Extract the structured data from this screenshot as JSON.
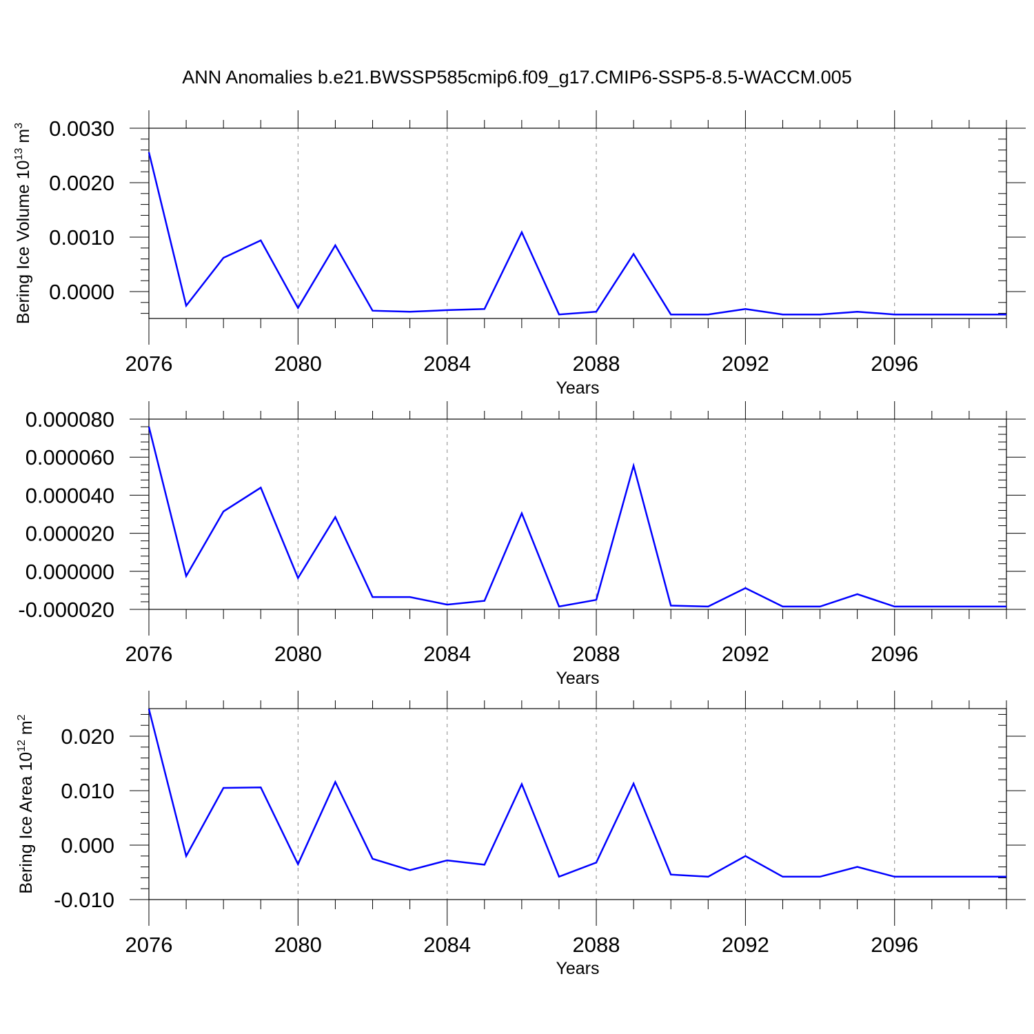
{
  "title": "ANN Anomalies b.e21.BWSSP585cmip6.f09_g17.CMIP6-SSP5-8.5-WACCM.005",
  "colors": {
    "line": "#0000ff",
    "axis": "#000000",
    "grid": "#888888"
  },
  "chart_data": [
    {
      "type": "line",
      "xlabel": "Years",
      "ylabel": "Bering Ice Volume 10",
      "ylabel_exp": "13",
      "ylabel_unit": " m",
      "ylabel_unit_exp": "3",
      "xlim": [
        2076,
        2099
      ],
      "ylim": [
        -0.0005,
        0.003
      ],
      "grid": "x dashed",
      "xticks": [
        2076,
        2080,
        2084,
        2088,
        2092,
        2096
      ],
      "xtick_labels": [
        "2076",
        "2080",
        "2084",
        "2088",
        "2092",
        "2096"
      ],
      "yticks": [
        0.003,
        0.002,
        0.001,
        0.0
      ],
      "ytick_labels": [
        "0.0030",
        "0.0020",
        "0.0010",
        "0.0000"
      ],
      "x": [
        2076,
        2077,
        2078,
        2079,
        2080,
        2081,
        2082,
        2083,
        2084,
        2085,
        2086,
        2087,
        2088,
        2089,
        2090,
        2091,
        2092,
        2093,
        2094,
        2095,
        2096,
        2097,
        2098,
        2099
      ],
      "y": [
        0.00256,
        -0.00026,
        0.00062,
        0.00094,
        -0.0003,
        0.00085,
        -0.00035,
        -0.00037,
        -0.00034,
        -0.00032,
        0.00109,
        -0.00042,
        -0.00037,
        0.00069,
        -0.00042,
        -0.00042,
        -0.00032,
        -0.00042,
        -0.00042,
        -0.00037,
        -0.00042,
        -0.00042,
        -0.00042,
        -0.00042
      ]
    },
    {
      "type": "line",
      "xlabel": "Years",
      "ylabel": "",
      "xlim": [
        2076,
        2099
      ],
      "ylim": [
        -2e-05,
        8e-05
      ],
      "grid": "x dashed",
      "xticks": [
        2076,
        2080,
        2084,
        2088,
        2092,
        2096
      ],
      "xtick_labels": [
        "2076",
        "2080",
        "2084",
        "2088",
        "2092",
        "2096"
      ],
      "yticks": [
        8e-05,
        6e-05,
        4e-05,
        2e-05,
        0.0,
        -2e-05
      ],
      "ytick_labels": [
        "0.000080",
        "0.000060",
        "0.000040",
        "0.000020",
        "0.000000",
        "-0.000020"
      ],
      "x": [
        2076,
        2077,
        2078,
        2079,
        2080,
        2081,
        2082,
        2083,
        2084,
        2085,
        2086,
        2087,
        2088,
        2089,
        2090,
        2091,
        2092,
        2093,
        2094,
        2095,
        2096,
        2097,
        2098,
        2099
      ],
      "y": [
        7.6e-05,
        -2.5e-06,
        3.15e-05,
        4.4e-05,
        -3.5e-06,
        2.85e-05,
        -1.35e-05,
        -1.35e-05,
        -1.75e-05,
        -1.55e-05,
        3.05e-05,
        -1.85e-05,
        -1.5e-05,
        5.55e-05,
        -1.8e-05,
        -1.85e-05,
        -8.8e-06,
        -1.85e-05,
        -1.85e-05,
        -1.2e-05,
        -1.85e-05,
        -1.85e-05,
        -1.85e-05,
        -1.85e-05
      ]
    },
    {
      "type": "line",
      "xlabel": "Years",
      "ylabel": "Bering Ice Area 10",
      "ylabel_exp": "12",
      "ylabel_unit": " m",
      "ylabel_unit_exp": "2",
      "xlim": [
        2076,
        2099
      ],
      "ylim": [
        -0.01,
        0.025
      ],
      "grid": "x dashed",
      "xticks": [
        2076,
        2080,
        2084,
        2088,
        2092,
        2096
      ],
      "xtick_labels": [
        "2076",
        "2080",
        "2084",
        "2088",
        "2092",
        "2096"
      ],
      "yticks": [
        0.02,
        0.01,
        0.0,
        -0.01
      ],
      "ytick_labels": [
        "0.020",
        "0.010",
        "0.000",
        "-0.010"
      ],
      "x": [
        2076,
        2077,
        2078,
        2079,
        2080,
        2081,
        2082,
        2083,
        2084,
        2085,
        2086,
        2087,
        2088,
        2089,
        2090,
        2091,
        2092,
        2093,
        2094,
        2095,
        2096,
        2097,
        2098,
        2099
      ],
      "y": [
        0.025,
        -0.002,
        0.0105,
        0.0106,
        -0.0035,
        0.0116,
        -0.0025,
        -0.0046,
        -0.0028,
        -0.0036,
        0.0112,
        -0.0058,
        -0.0032,
        0.0113,
        -0.0054,
        -0.0058,
        -0.002,
        -0.0058,
        -0.0058,
        -0.004,
        -0.0058,
        -0.0058,
        -0.0058,
        -0.0058
      ]
    }
  ]
}
